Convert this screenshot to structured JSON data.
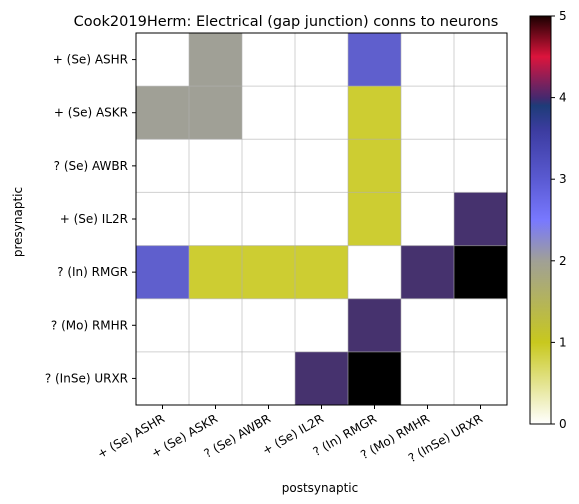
{
  "chart_data": {
    "type": "heatmap",
    "title": "Cook2019Herm: Electrical (gap junction) conns to neurons",
    "xlabel": "postsynaptic",
    "ylabel": "presynaptic",
    "x_categories": [
      "+ (Se) ASHR",
      "+ (Se) ASKR",
      "? (Se) AWBR",
      "+ (Se) IL2R",
      "? (In) RMGR",
      "? (Mo) RMHR",
      "? (InSe) URXR"
    ],
    "y_categories": [
      "+ (Se) ASHR",
      "+ (Se) ASKR",
      "? (Se) AWBR",
      "+ (Se) IL2R",
      "? (In) RMGR",
      "? (Mo) RMHR",
      "? (InSe) URXR"
    ],
    "values": [
      [
        0,
        2,
        0,
        0,
        3,
        0,
        0
      ],
      [
        2,
        2,
        0,
        0,
        1,
        0,
        0
      ],
      [
        0,
        0,
        0,
        0,
        1,
        0,
        0
      ],
      [
        0,
        0,
        0,
        0,
        1,
        0,
        4
      ],
      [
        3,
        1,
        1,
        1,
        0,
        4,
        5
      ],
      [
        0,
        0,
        0,
        0,
        4,
        0,
        0
      ],
      [
        0,
        0,
        0,
        4,
        5,
        0,
        0
      ]
    ],
    "colorbar": {
      "min": 0,
      "max": 5,
      "ticks": [
        0,
        1,
        2,
        3,
        4,
        5
      ]
    },
    "grid": true
  }
}
